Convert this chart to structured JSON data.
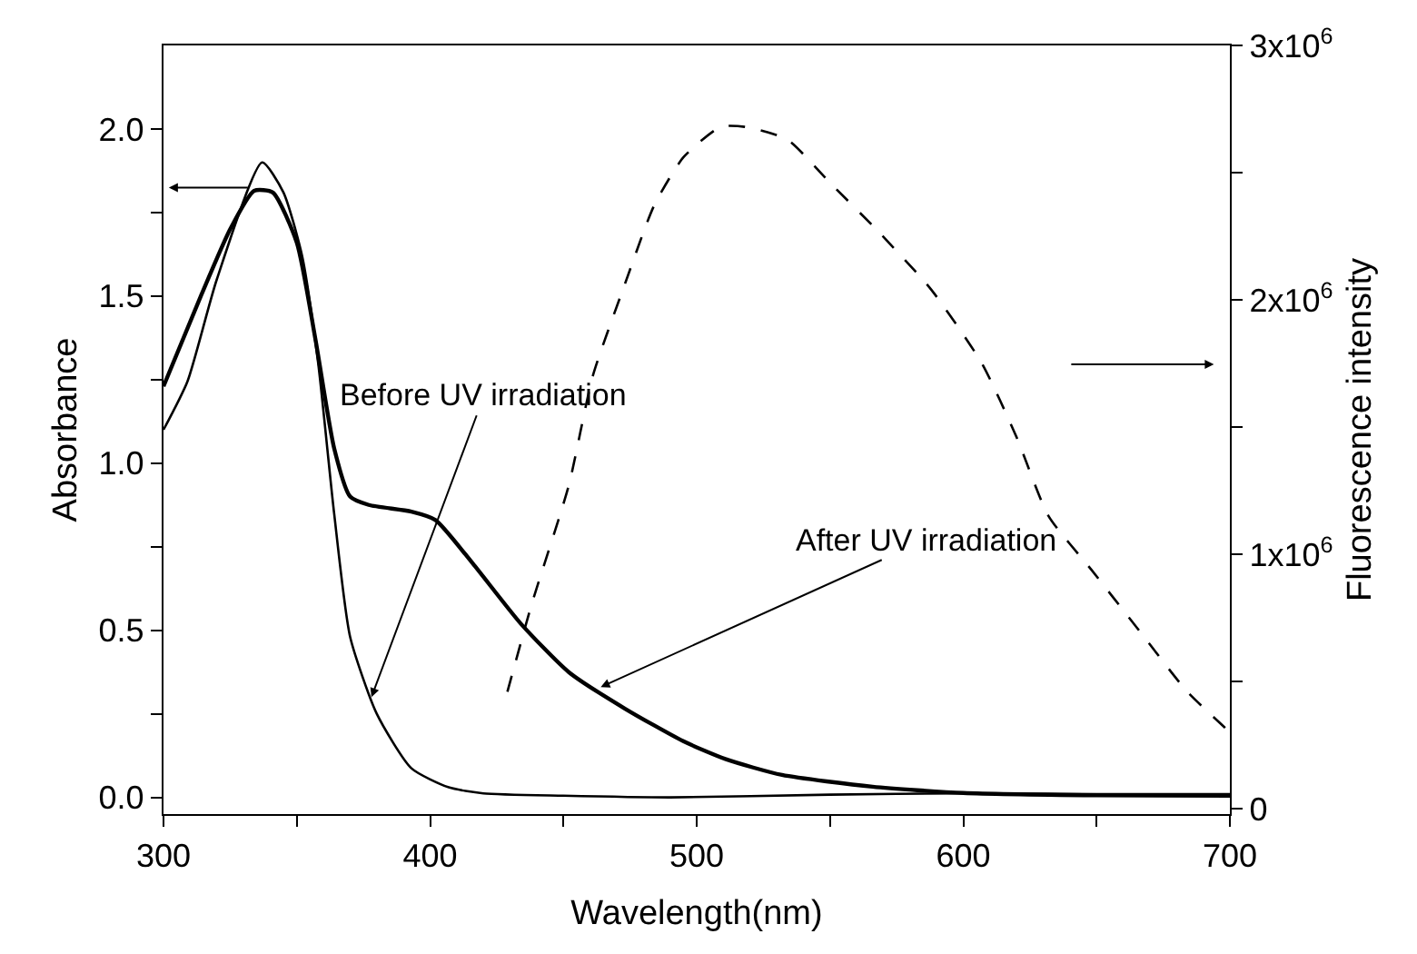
{
  "chart_data": {
    "type": "line",
    "xlabel": "Wavelength(nm)",
    "ylabel": "Absorbance",
    "y2label": "Fluorescence intensity",
    "xlim": [
      300,
      700
    ],
    "ylim": [
      -0.05,
      2.25
    ],
    "y2lim": [
      -21000,
      3000000
    ],
    "xticks": [
      300,
      {
        "value": 350,
        "label": null
      },
      400,
      {
        "value": 450,
        "label": null
      },
      500,
      {
        "value": 550,
        "label": null
      },
      600,
      {
        "value": 650,
        "label": null
      },
      700
    ],
    "yticks": [
      {
        "value": 0,
        "label": "0.0"
      },
      {
        "value": 0.25,
        "label": null
      },
      0.5,
      {
        "value": 0.75,
        "label": null
      },
      {
        "value": 1,
        "label": "1.0"
      },
      {
        "value": 1.25,
        "label": null
      },
      1.5,
      {
        "value": 1.75,
        "label": null
      },
      {
        "value": 2,
        "label": "2.0"
      }
    ],
    "y2ticks": [
      0,
      {
        "value": 500000,
        "label": null
      },
      {
        "value": 1000000,
        "label": "1x10$^{6}$"
      },
      {
        "value": 1500000,
        "label": null
      },
      {
        "value": 2000000,
        "label": "2x10$^{6}$"
      },
      {
        "value": 2500000,
        "label": null
      },
      {
        "value": 3000000,
        "label": "3x10$^{6}$"
      }
    ],
    "marker": "none",
    "series": [
      {
        "color": "#000000",
        "line_style": "solid",
        "x": [
          300,
          309,
          320,
          337,
          345,
          352,
          358,
          364,
          370,
          380,
          393,
          407,
          420,
          450,
          490,
          550,
          600,
          650,
          700
        ],
        "values": [
          1.1,
          1.245,
          1.55,
          1.9,
          1.81,
          1.62,
          1.3,
          0.85,
          0.48,
          0.25,
          0.087,
          0.03,
          0.012,
          0.005,
          0.0,
          0.008,
          0.012,
          0.01,
          0.01
        ]
      },
      {
        "color": "#000000",
        "line_style": "solid",
        "x": [
          300,
          314,
          325,
          334,
          341,
          350,
          357,
          364,
          370,
          377,
          393,
          402,
          416,
          434,
          452,
          473,
          495,
          511,
          532,
          566,
          600,
          650,
          700
        ],
        "values": [
          1.23,
          1.5,
          1.7,
          1.815,
          1.81,
          1.66,
          1.37,
          1.045,
          0.9,
          0.875,
          0.855,
          0.83,
          0.7,
          0.52,
          0.375,
          0.266,
          0.168,
          0.114,
          0.067,
          0.032,
          0.013,
          0.006,
          0.005
        ]
      },
      {
        "color": "#000000",
        "line_style": "dashed",
        "axis": "y2",
        "x": [
          429,
          438,
          452,
          461,
          473,
          484,
          495,
          509,
          518,
          534,
          550,
          568,
          588,
          607,
          620,
          632,
          648,
          666,
          684,
          698,
          700
        ],
        "values": [
          460000,
          800000,
          1270000,
          1700000,
          2060000,
          2370000,
          2560000,
          2680000,
          2680000,
          2630000,
          2460000,
          2270000,
          2040000,
          1750000,
          1460000,
          1150000,
          940000,
          700000,
          460000,
          320000,
          300000
        ]
      }
    ],
    "annotations": [
      {
        "text": "Before UV irradiation",
        "x": 378,
        "y": 0.3
      },
      {
        "text": "After UV irradiation",
        "x": 464,
        "y": 0.33
      }
    ]
  }
}
